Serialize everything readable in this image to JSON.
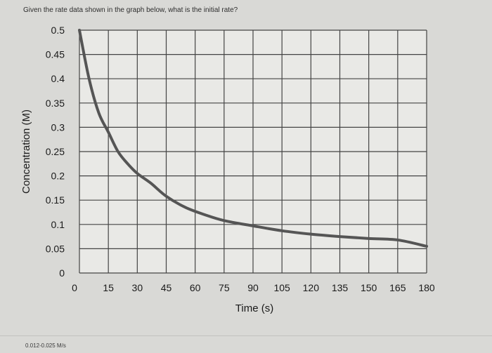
{
  "question": "Given the rate data shown in the graph below, what is the initial rate?",
  "answer_option": "0.012-0.025 M/s",
  "chart_data": {
    "type": "line",
    "title": "",
    "xlabel": "Time (s)",
    "ylabel": "Concentration (M)",
    "xlim": [
      0,
      180
    ],
    "ylim": [
      0,
      0.5
    ],
    "xticks": [
      "0",
      "15",
      "30",
      "45",
      "60",
      "75",
      "90",
      "105",
      "120",
      "135",
      "150",
      "165",
      "180"
    ],
    "yticks": [
      "0",
      "0.05",
      "0.1",
      "0.15",
      "0.2",
      "0.25",
      "0.3",
      "0.35",
      "0.4",
      "0.45",
      "0.5"
    ],
    "grid": true,
    "colors": {
      "line": "#555555",
      "grid": "#444444",
      "plot_bg": "#e9e9e6"
    },
    "series": [
      {
        "x": [
          0,
          5,
          10,
          15,
          20,
          25,
          30,
          37,
          45,
          55,
          65,
          75,
          90,
          105,
          120,
          135,
          150,
          165,
          180
        ],
        "values": [
          0.5,
          0.4,
          0.33,
          0.29,
          0.25,
          0.225,
          0.205,
          0.185,
          0.158,
          0.135,
          0.12,
          0.108,
          0.097,
          0.087,
          0.08,
          0.075,
          0.071,
          0.068,
          0.055
        ]
      }
    ]
  }
}
